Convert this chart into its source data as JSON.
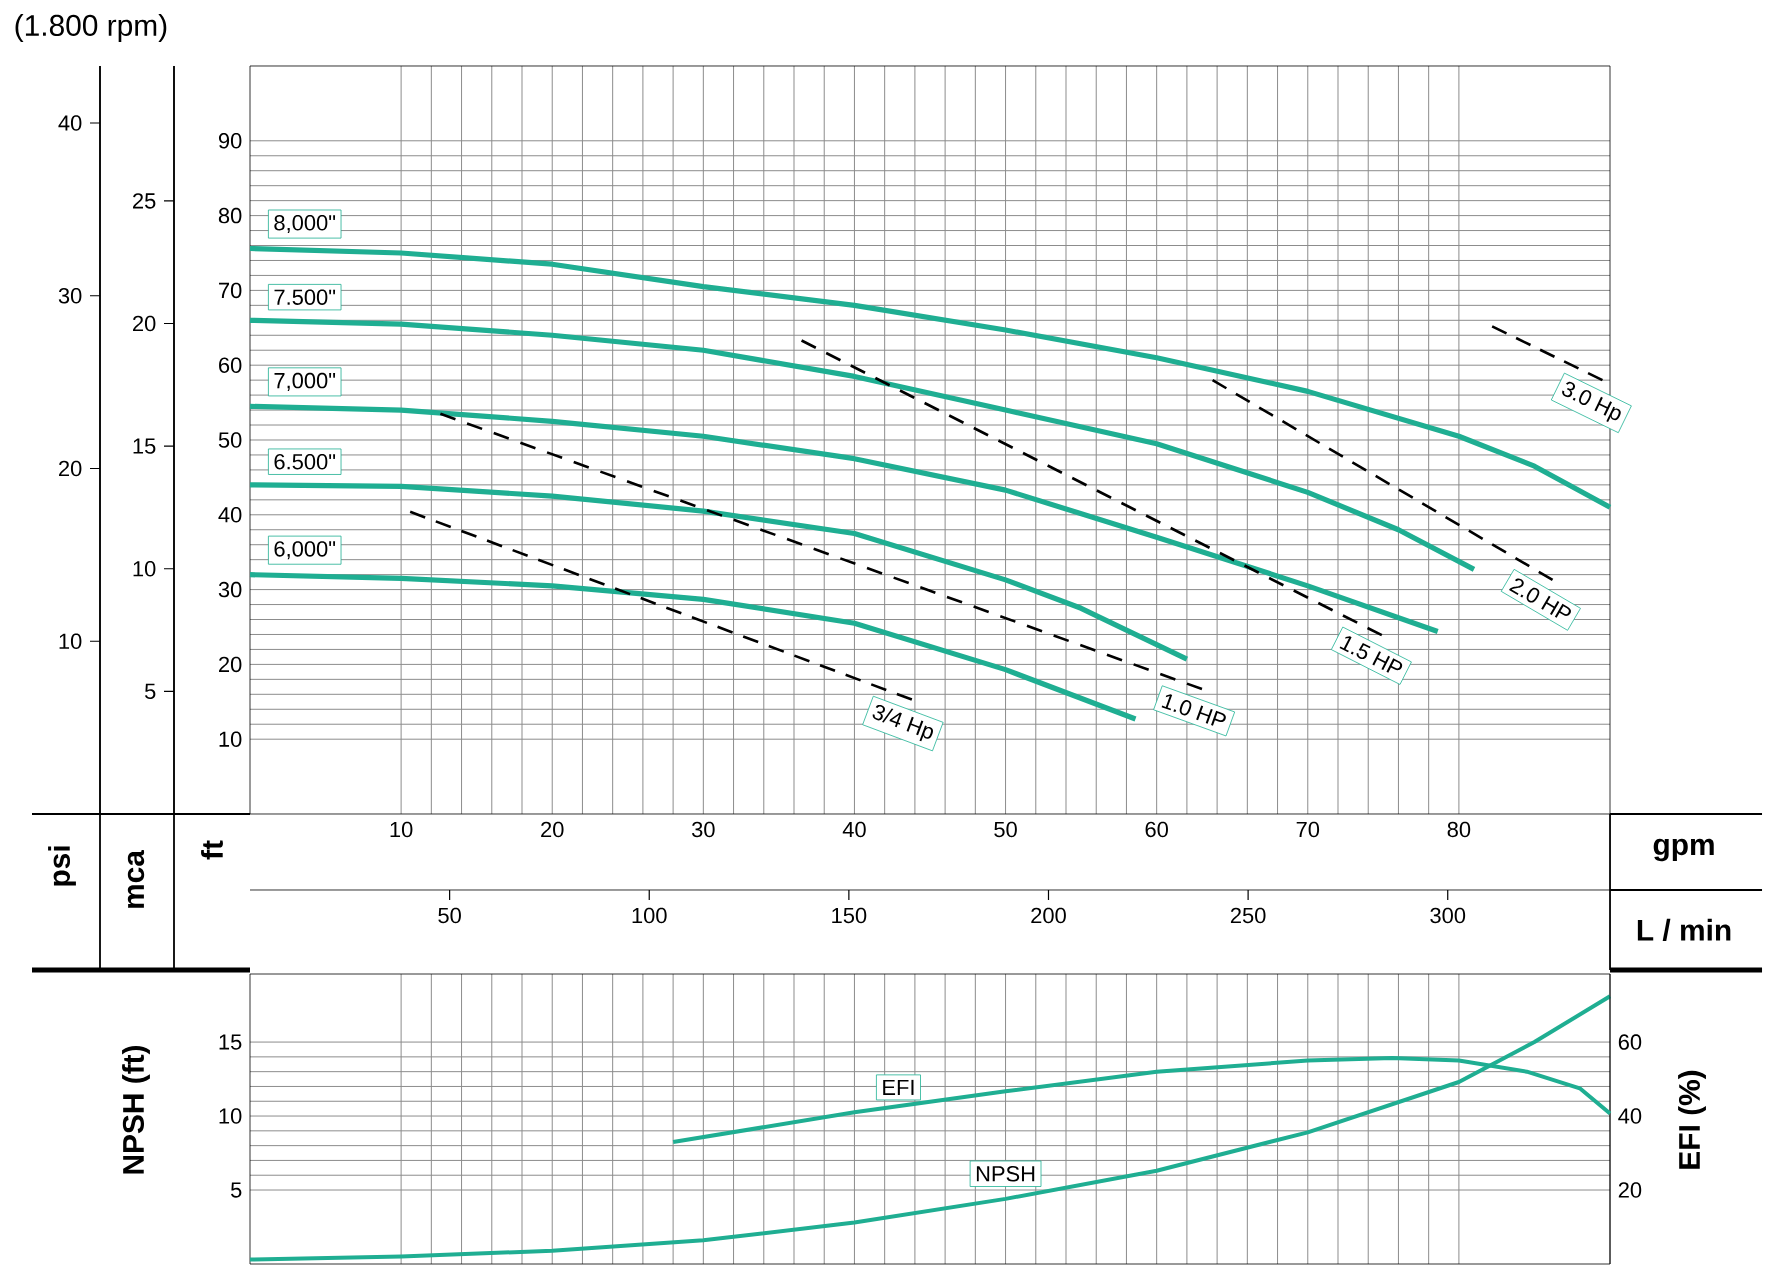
{
  "chart_data": [
    {
      "type": "line",
      "title": "(1.800 rpm)",
      "xlabel": "gpm",
      "x2label": "L / min",
      "ylabel": "ft",
      "y2label": "mca",
      "y3label": "psi",
      "xlim": [
        0,
        90
      ],
      "xticks": [
        10,
        20,
        30,
        40,
        50,
        60,
        70,
        80
      ],
      "x2lim": [
        0,
        340.65
      ],
      "x2ticks": [
        50,
        100,
        150,
        200,
        250,
        300
      ],
      "ylim": [
        0,
        100
      ],
      "yticks": [
        10,
        20,
        30,
        40,
        50,
        60,
        70,
        80,
        90
      ],
      "y2lim": [
        0,
        30.5
      ],
      "y2ticks": [
        5,
        10,
        15,
        20,
        25
      ],
      "y3lim": [
        0,
        43.3
      ],
      "y3ticks": [
        10,
        20,
        30,
        40
      ],
      "grid": true,
      "legend": "left",
      "line_style": "solid",
      "series": [
        {
          "name": "8,000\"",
          "color": "#1fae92",
          "x": [
            0,
            10,
            20,
            30,
            40,
            50,
            60,
            70,
            80,
            85,
            90
          ],
          "values": [
            75.6,
            75,
            73.5,
            70.5,
            68,
            64.7,
            61,
            56.5,
            50.5,
            46.5,
            41
          ]
        },
        {
          "name": "7.500\"",
          "color": "#1fae92",
          "x": [
            0,
            10,
            20,
            30,
            40,
            50,
            60,
            70,
            76,
            81
          ],
          "values": [
            66,
            65.5,
            64,
            62,
            58.5,
            54,
            49.5,
            43,
            38,
            32.7
          ]
        },
        {
          "name": "7,000\"",
          "color": "#1fae92",
          "x": [
            0,
            10,
            20,
            30,
            40,
            50,
            60,
            70,
            78.6
          ],
          "values": [
            54.5,
            54,
            52.5,
            50.5,
            47.5,
            43.3,
            37,
            30.5,
            24.4
          ]
        },
        {
          "name": "6.500\"",
          "color": "#1fae92",
          "x": [
            0,
            10,
            20,
            30,
            40,
            50,
            55,
            62
          ],
          "values": [
            44,
            43.8,
            42.5,
            40.5,
            37.5,
            31.3,
            27.5,
            20.7
          ]
        },
        {
          "name": "6,000\"",
          "color": "#1fae92",
          "x": [
            0,
            10,
            20,
            30,
            40,
            50,
            58.6
          ],
          "values": [
            32,
            31.5,
            30.5,
            28.7,
            25.5,
            19.3,
            12.7
          ]
        },
        {
          "name": "3/4 Hp",
          "color": "#000000",
          "line_style": "dashed",
          "x": [
            10.6,
            43.8
          ],
          "values": [
            40.4,
            15.3
          ]
        },
        {
          "name": "1.0 HP",
          "color": "#000000",
          "line_style": "dashed",
          "x": [
            12.6,
            63
          ],
          "values": [
            53.5,
            16.7
          ]
        },
        {
          "name": "1.5 HP",
          "color": "#000000",
          "line_style": "dashed",
          "x": [
            36.5,
            74.9
          ],
          "values": [
            63.3,
            23.9
          ]
        },
        {
          "name": "2.0 HP",
          "color": "#000000",
          "line_style": "dashed",
          "x": [
            63.7,
            86.2
          ],
          "values": [
            58,
            31.3
          ]
        },
        {
          "name": "3.0 Hp",
          "color": "#000000",
          "line_style": "dashed",
          "x": [
            82.2,
            89.5
          ],
          "values": [
            65.2,
            58
          ]
        }
      ]
    },
    {
      "type": "line",
      "ylabel": "NPSH (ft)",
      "y2label": "EFI (%)",
      "xlim": [
        0,
        90
      ],
      "xticks": [
        {
          "value": 10,
          "label": null
        },
        {
          "value": 20,
          "label": null
        },
        {
          "value": 30,
          "label": null
        },
        {
          "value": 40,
          "label": null
        },
        {
          "value": 50,
          "label": null
        },
        {
          "value": 60,
          "label": null
        },
        {
          "value": 70,
          "label": null
        },
        {
          "value": 80,
          "label": null
        }
      ],
      "ylim": [
        0,
        19.6
      ],
      "yticks": [
        5,
        10,
        15
      ],
      "y2lim": [
        0,
        78.4
      ],
      "y2ticks": [
        20,
        40,
        60
      ],
      "grid": true,
      "tick_labels": "y",
      "line_style": "solid",
      "series": [
        {
          "name": "NPSH",
          "color": "#1fae92",
          "x": [
            0,
            10,
            20,
            30,
            40,
            50,
            60,
            70,
            80,
            85,
            90
          ],
          "values": [
            0.3,
            0.5,
            0.9,
            1.6,
            2.8,
            4.4,
            6.3,
            8.9,
            12.3,
            15,
            18.1
          ]
        },
        {
          "name": "EFI",
          "color": "#1fae92",
          "axis": "y2",
          "x": [
            28,
            40,
            50,
            60,
            70,
            75.6,
            80,
            84.5,
            88,
            90
          ],
          "values": [
            33,
            41,
            46.7,
            52,
            55,
            55.7,
            55,
            52,
            47.5,
            40.7
          ]
        }
      ]
    }
  ]
}
